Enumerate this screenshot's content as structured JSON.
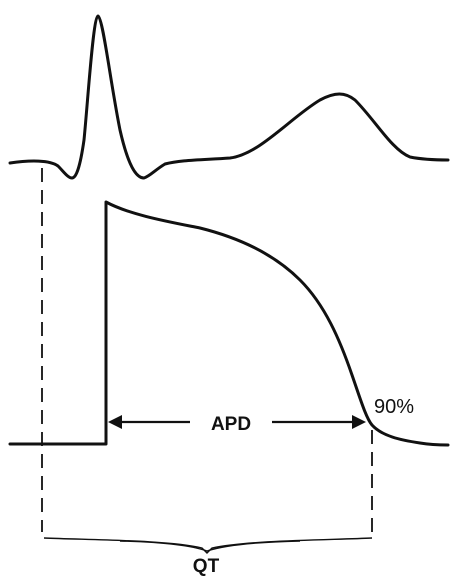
{
  "labels": {
    "apd": "APD",
    "percent": "90%",
    "qt": "QT"
  }
}
